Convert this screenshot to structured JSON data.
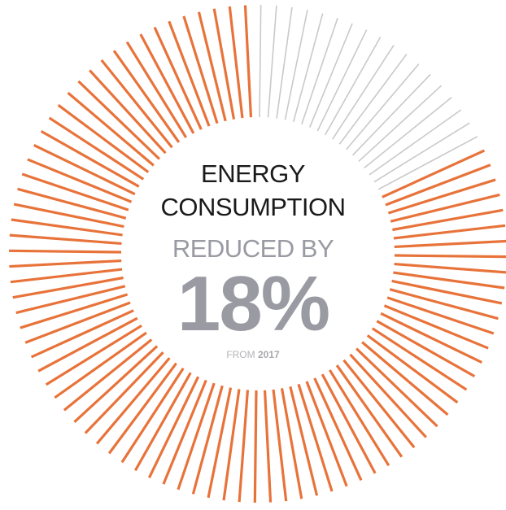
{
  "colors": {
    "accent": "#E8733A",
    "inactive": "#C9C9C9",
    "title_text": "#1A1A1A",
    "highlight_text": "#9A9AA3"
  },
  "chart_data": {
    "type": "radial-ticks",
    "title_line_1": "ENERGY",
    "title_line_2": "CONSUMPTION",
    "subtitle": "REDUCED BY",
    "value_label": "18%",
    "value_percent": 18,
    "from_label": "FROM",
    "from_year": "2017",
    "total_ticks": 100,
    "highlighted_ticks": 18,
    "highlighted_series_color": "#C9C9C9",
    "remaining_series_color": "#E8733A"
  }
}
